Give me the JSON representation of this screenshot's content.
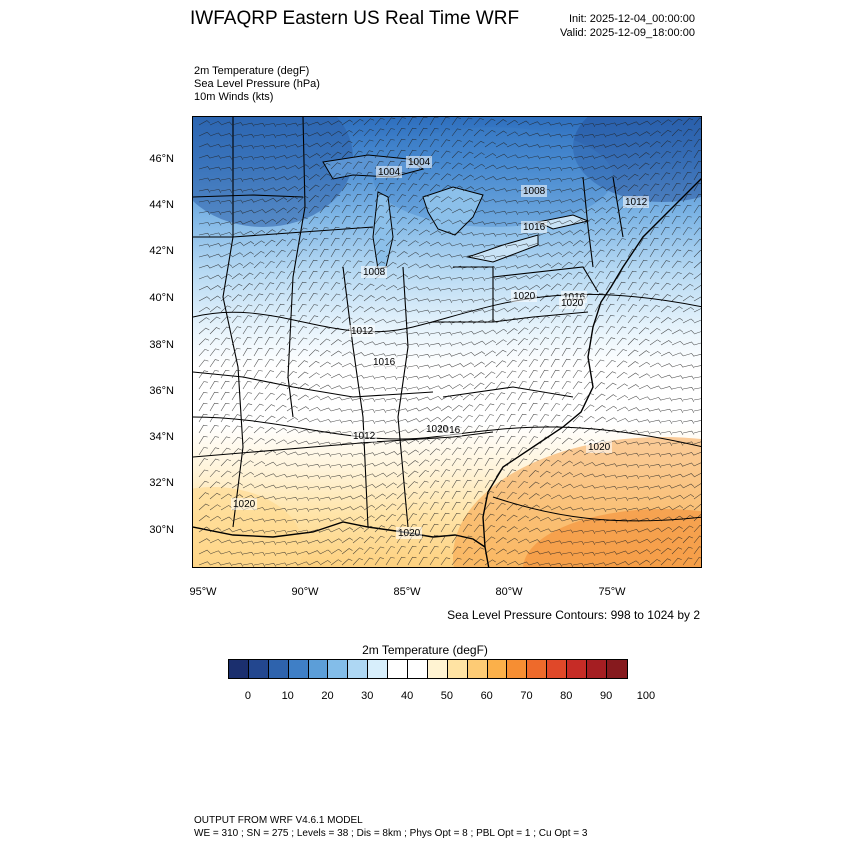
{
  "header": {
    "title": "IWFAQRP Eastern US Real Time WRF",
    "init": "Init: 2025-12-04_00:00:00",
    "valid": "Valid: 2025-12-09_18:00:00"
  },
  "fields": [
    "2m Temperature   (degF)",
    "Sea Level Pressure   (hPa)",
    "10m Winds   (kts)"
  ],
  "map": {
    "lat_labels": [
      "46°N",
      "44°N",
      "42°N",
      "40°N",
      "38°N",
      "36°N",
      "34°N",
      "32°N",
      "30°N"
    ],
    "lon_labels": [
      "95°W",
      "90°W",
      "85°W",
      "80°W",
      "75°W"
    ],
    "pressure_labels": [
      "1004",
      "1004",
      "1008",
      "1016",
      "1012",
      "1008",
      "1012",
      "1016",
      "1020",
      "1016",
      "1012",
      "1016",
      "1020",
      "1020",
      "1020",
      "1020",
      "1020"
    ],
    "contour_note": "Sea Level Pressure Contours: 998 to 1024 by 2"
  },
  "colorbar": {
    "title": "2m Temperature  (degF)",
    "labels": [
      "0",
      "10",
      "20",
      "30",
      "40",
      "50",
      "60",
      "70",
      "80",
      "90",
      "100"
    ],
    "colors": [
      "#1b2f6e",
      "#23478f",
      "#2e63ad",
      "#3f7fc6",
      "#5c9ed8",
      "#83bde9",
      "#aed7f3",
      "#d7eefb",
      "#ffffff",
      "#ffffff",
      "#fff3d2",
      "#ffe3a3",
      "#fdcb75",
      "#fbb04a",
      "#f68e33",
      "#ee6a2b",
      "#e04829",
      "#c62c26",
      "#a51e22",
      "#861a1e"
    ]
  },
  "footer": {
    "line1": "OUTPUT FROM WRF V4.6.1 MODEL",
    "line2": "WE = 310 ; SN = 275 ; Levels = 38 ; Dis = 8km ; Phys Opt = 8 ; PBL Opt = 1 ; Cu Opt = 3"
  }
}
